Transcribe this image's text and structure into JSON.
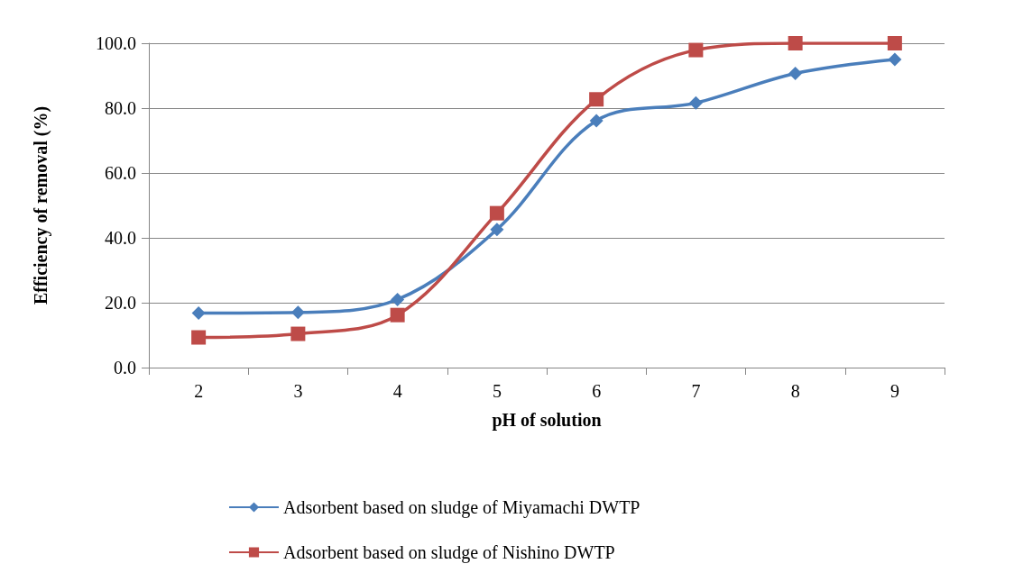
{
  "chart_data": {
    "type": "line",
    "xlabel": "pH of solution",
    "ylabel": "Efficiency of removal (%)",
    "categories": [
      "2",
      "3",
      "4",
      "5",
      "6",
      "7",
      "8",
      "9"
    ],
    "series": [
      {
        "name": "Adsorbent based on sludge of Miyamachi DWTP",
        "color": "#4a7ebb",
        "marker": "diamond",
        "values": [
          16.8,
          17.0,
          21.0,
          42.6,
          76.1,
          81.6,
          90.7,
          95.0
        ]
      },
      {
        "name": "Adsorbent based on sludge of Nishino DWTP",
        "color": "#be4b48",
        "marker": "square",
        "values": [
          9.3,
          10.4,
          16.2,
          47.6,
          82.7,
          97.9,
          100.0,
          100.0
        ]
      }
    ],
    "ylim": [
      0,
      100
    ],
    "yticks": [
      {
        "value": 0,
        "label": "0.0"
      },
      {
        "value": 20,
        "label": "20.0"
      },
      {
        "value": 40,
        "label": "40.0"
      },
      {
        "value": 60,
        "label": "60.0"
      },
      {
        "value": 80,
        "label": "80.0"
      },
      {
        "value": 100,
        "label": "100.0"
      }
    ],
    "grid": "y",
    "legend": "bottom",
    "line_style": "solid"
  }
}
